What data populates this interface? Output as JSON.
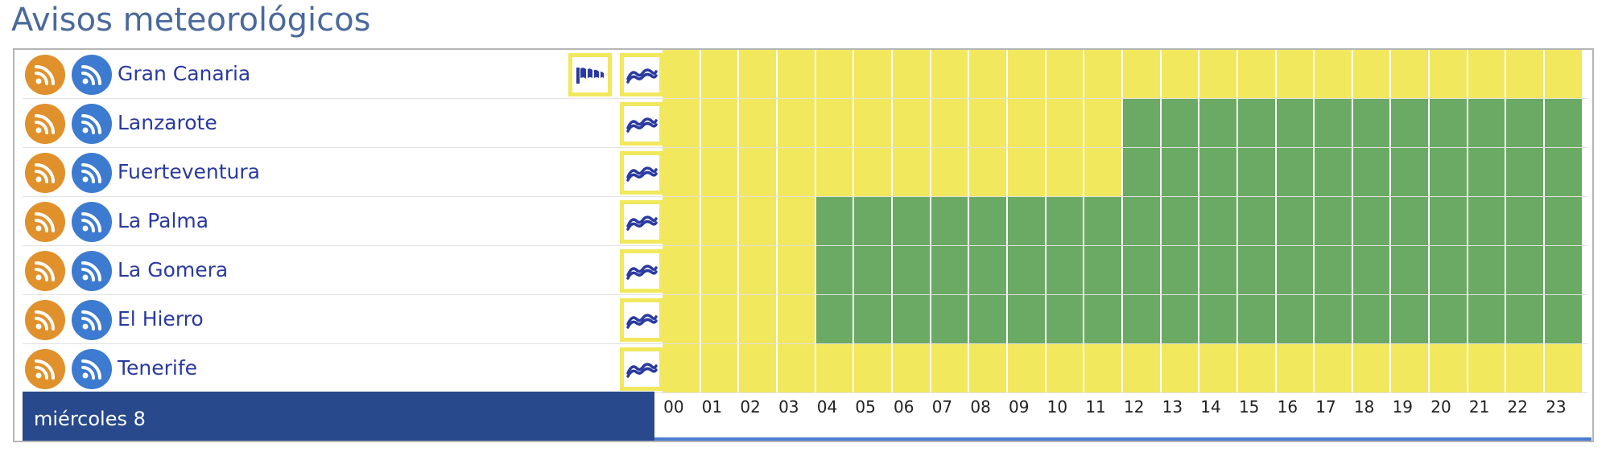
{
  "title": "Avisos meteorológicos",
  "colors": {
    "no_warning": "#6aaa64",
    "yellow_warning": "#f2e85d",
    "day_bar": "#284a8c",
    "rss_orange": "#e0912b",
    "rss_blue": "#3c7bd0"
  },
  "zones": [
    {
      "name": "Gran Canaria",
      "icons": [
        "wind-icon",
        "coastal-icon"
      ],
      "hourly": [
        "yellow",
        "yellow",
        "yellow",
        "yellow",
        "yellow",
        "yellow",
        "yellow",
        "yellow",
        "yellow",
        "yellow",
        "yellow",
        "yellow",
        "yellow",
        "yellow",
        "yellow",
        "yellow",
        "yellow",
        "yellow",
        "yellow",
        "yellow",
        "yellow",
        "yellow",
        "yellow",
        "yellow"
      ]
    },
    {
      "name": "Lanzarote",
      "icons": [
        "coastal-icon"
      ],
      "hourly": [
        "yellow",
        "yellow",
        "yellow",
        "yellow",
        "yellow",
        "yellow",
        "yellow",
        "yellow",
        "yellow",
        "yellow",
        "yellow",
        "yellow",
        "green",
        "green",
        "green",
        "green",
        "green",
        "green",
        "green",
        "green",
        "green",
        "green",
        "green",
        "green"
      ]
    },
    {
      "name": "Fuerteventura",
      "icons": [
        "coastal-icon"
      ],
      "hourly": [
        "yellow",
        "yellow",
        "yellow",
        "yellow",
        "yellow",
        "yellow",
        "yellow",
        "yellow",
        "yellow",
        "yellow",
        "yellow",
        "yellow",
        "green",
        "green",
        "green",
        "green",
        "green",
        "green",
        "green",
        "green",
        "green",
        "green",
        "green",
        "green"
      ]
    },
    {
      "name": "La Palma",
      "icons": [
        "coastal-icon"
      ],
      "hourly": [
        "yellow",
        "yellow",
        "yellow",
        "yellow",
        "green",
        "green",
        "green",
        "green",
        "green",
        "green",
        "green",
        "green",
        "green",
        "green",
        "green",
        "green",
        "green",
        "green",
        "green",
        "green",
        "green",
        "green",
        "green",
        "green"
      ]
    },
    {
      "name": "La Gomera",
      "icons": [
        "coastal-icon"
      ],
      "hourly": [
        "yellow",
        "yellow",
        "yellow",
        "yellow",
        "green",
        "green",
        "green",
        "green",
        "green",
        "green",
        "green",
        "green",
        "green",
        "green",
        "green",
        "green",
        "green",
        "green",
        "green",
        "green",
        "green",
        "green",
        "green",
        "green"
      ]
    },
    {
      "name": "El Hierro",
      "icons": [
        "coastal-icon"
      ],
      "hourly": [
        "yellow",
        "yellow",
        "yellow",
        "yellow",
        "green",
        "green",
        "green",
        "green",
        "green",
        "green",
        "green",
        "green",
        "green",
        "green",
        "green",
        "green",
        "green",
        "green",
        "green",
        "green",
        "green",
        "green",
        "green",
        "green"
      ]
    },
    {
      "name": "Tenerife",
      "icons": [
        "coastal-icon"
      ],
      "hourly": [
        "yellow",
        "yellow",
        "yellow",
        "yellow",
        "yellow",
        "yellow",
        "yellow",
        "yellow",
        "yellow",
        "yellow",
        "yellow",
        "yellow",
        "yellow",
        "yellow",
        "yellow",
        "yellow",
        "yellow",
        "yellow",
        "yellow",
        "yellow",
        "yellow",
        "yellow",
        "yellow",
        "yellow"
      ]
    }
  ],
  "day_label": "miércoles 8",
  "hours": [
    "00",
    "01",
    "02",
    "03",
    "04",
    "05",
    "06",
    "07",
    "08",
    "09",
    "10",
    "11",
    "12",
    "13",
    "14",
    "15",
    "16",
    "17",
    "18",
    "19",
    "20",
    "21",
    "22",
    "23"
  ]
}
